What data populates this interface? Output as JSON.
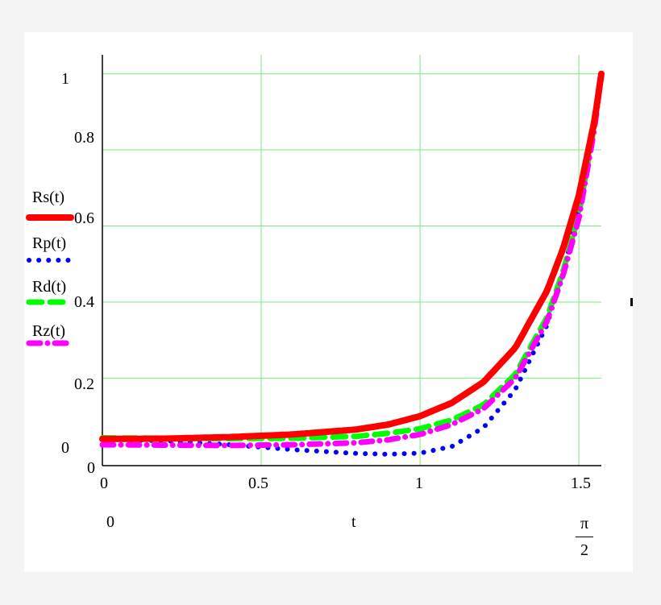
{
  "chart_data": {
    "type": "line",
    "x_range": [
      0,
      1.5707963
    ],
    "ylim": [
      0,
      1
    ],
    "grid": true,
    "x_ticks": [
      0,
      0.5,
      1,
      1.5
    ],
    "x_tick_labels": [
      "0",
      "0.5",
      "1",
      "1.5"
    ],
    "y_ticks": [
      0.2,
      0.4,
      0.6,
      0.8,
      1
    ],
    "y_tick_labels": [
      "0.2",
      "0.4",
      "0.6",
      "0.8",
      "1"
    ],
    "y_axis_labels": {
      "top": "1",
      "bottom_upper": "0",
      "bottom_lower": "0"
    },
    "x_axis_labels": {
      "left": "0",
      "center": "t",
      "right_numerator": "π",
      "right_denominator": "2"
    },
    "series": [
      {
        "name": "Rs(t)",
        "color": "#ff0000",
        "style": "solid",
        "x": [
          0,
          0.2,
          0.4,
          0.6,
          0.8,
          0.9,
          1.0,
          1.1,
          1.2,
          1.3,
          1.4,
          1.45,
          1.5,
          1.55,
          1.5708
        ],
        "values": [
          0.04,
          0.041,
          0.045,
          0.052,
          0.065,
          0.078,
          0.1,
          0.135,
          0.19,
          0.28,
          0.43,
          0.54,
          0.68,
          0.88,
          1.0
        ]
      },
      {
        "name": "Rp(t)",
        "color": "#0000ff",
        "style": "dotted",
        "x": [
          0,
          0.2,
          0.4,
          0.6,
          0.8,
          0.9,
          1.0,
          1.1,
          1.2,
          1.3,
          1.4,
          1.45,
          1.5,
          1.55,
          1.5708
        ],
        "values": [
          0.04,
          0.035,
          0.025,
          0.012,
          0.002,
          0.0,
          0.003,
          0.02,
          0.07,
          0.17,
          0.34,
          0.48,
          0.64,
          0.87,
          1.0
        ]
      },
      {
        "name": "Rd(t)",
        "color": "#00ff00",
        "style": "dashed",
        "x": [
          0,
          0.2,
          0.4,
          0.6,
          0.8,
          0.9,
          1.0,
          1.1,
          1.2,
          1.3,
          1.4,
          1.45,
          1.5,
          1.55,
          1.5708
        ],
        "values": [
          0.043,
          0.042,
          0.041,
          0.042,
          0.047,
          0.055,
          0.067,
          0.09,
          0.13,
          0.21,
          0.36,
          0.48,
          0.63,
          0.87,
          1.0
        ]
      },
      {
        "name": "Rz(t)",
        "color": "#ff00ff",
        "style": "dashdot",
        "x": [
          0,
          0.2,
          0.4,
          0.6,
          0.8,
          0.9,
          1.0,
          1.1,
          1.2,
          1.3,
          1.4,
          1.45,
          1.5,
          1.55,
          1.5708
        ],
        "values": [
          0.025,
          0.024,
          0.023,
          0.025,
          0.03,
          0.038,
          0.052,
          0.078,
          0.12,
          0.2,
          0.35,
          0.47,
          0.62,
          0.86,
          1.0
        ]
      }
    ]
  }
}
